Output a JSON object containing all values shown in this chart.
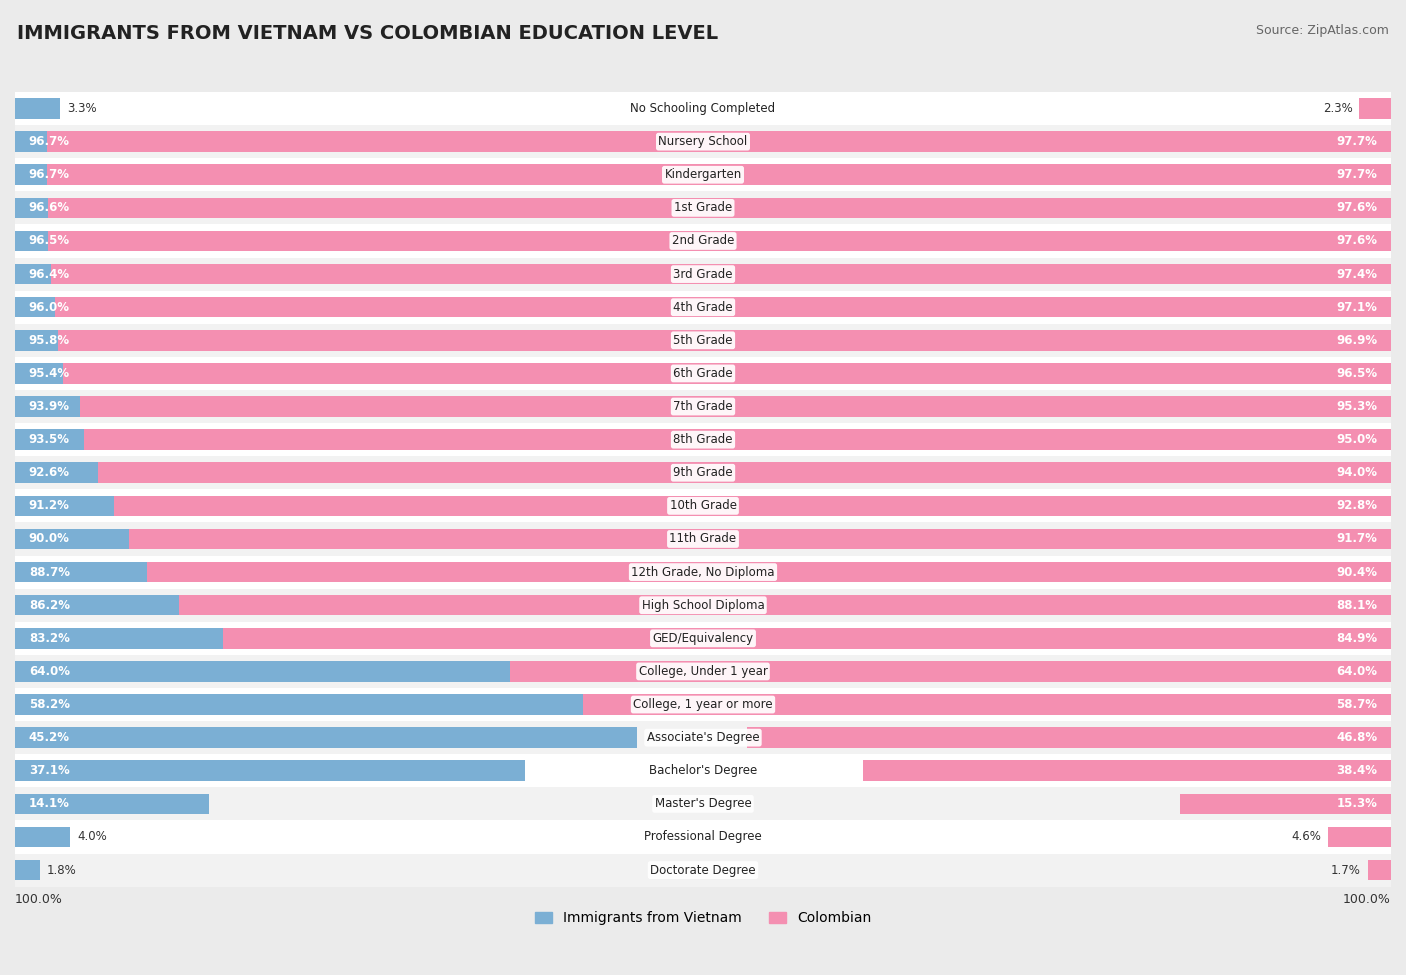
{
  "title": "IMMIGRANTS FROM VIETNAM VS COLOMBIAN EDUCATION LEVEL",
  "source": "Source: ZipAtlas.com",
  "categories": [
    "No Schooling Completed",
    "Nursery School",
    "Kindergarten",
    "1st Grade",
    "2nd Grade",
    "3rd Grade",
    "4th Grade",
    "5th Grade",
    "6th Grade",
    "7th Grade",
    "8th Grade",
    "9th Grade",
    "10th Grade",
    "11th Grade",
    "12th Grade, No Diploma",
    "High School Diploma",
    "GED/Equivalency",
    "College, Under 1 year",
    "College, 1 year or more",
    "Associate's Degree",
    "Bachelor's Degree",
    "Master's Degree",
    "Professional Degree",
    "Doctorate Degree"
  ],
  "vietnam": [
    3.3,
    96.7,
    96.7,
    96.6,
    96.5,
    96.4,
    96.0,
    95.8,
    95.4,
    93.9,
    93.5,
    92.6,
    91.2,
    90.0,
    88.7,
    86.2,
    83.2,
    64.0,
    58.2,
    45.2,
    37.1,
    14.1,
    4.0,
    1.8
  ],
  "colombian": [
    2.3,
    97.7,
    97.7,
    97.6,
    97.6,
    97.4,
    97.1,
    96.9,
    96.5,
    95.3,
    95.0,
    94.0,
    92.8,
    91.7,
    90.4,
    88.1,
    84.9,
    64.0,
    58.7,
    46.8,
    38.4,
    15.3,
    4.6,
    1.7
  ],
  "vietnam_color": "#7BAFD4",
  "colombian_color": "#F48FB1",
  "background_color": "#ebebeb",
  "row_even_color": "#ffffff",
  "row_odd_color": "#f2f2f2",
  "bar_height": 0.62,
  "legend_vietnam": "Immigrants from Vietnam",
  "legend_colombian": "Colombian",
  "title_fontsize": 14,
  "label_fontsize": 8.5,
  "value_fontsize": 8.5
}
